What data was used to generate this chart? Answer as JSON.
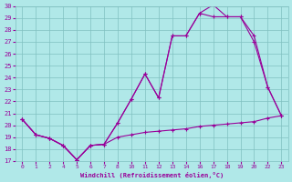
{
  "xlabel": "Windchill (Refroidissement éolien,°C)",
  "bg_color": "#b0e8e8",
  "grid_color": "#80c0c0",
  "line_color": "#990099",
  "hour_labels": [
    "0",
    "1",
    "2",
    "4",
    "5",
    "6",
    "7",
    "8",
    "10",
    "11",
    "12",
    "13",
    "14",
    "16",
    "17",
    "18",
    "19",
    "20",
    "22",
    "23"
  ],
  "ylim": [
    17,
    30
  ],
  "y_ticks": [
    17,
    18,
    19,
    20,
    21,
    22,
    23,
    24,
    25,
    26,
    27,
    28,
    29,
    30
  ],
  "series": [
    {
      "y": [
        20.5,
        19.2,
        18.9,
        18.3,
        17.1,
        18.3,
        18.4,
        20.2,
        22.2,
        24.3,
        22.3,
        27.5,
        27.5,
        29.4,
        30.1,
        29.1,
        29.1,
        27.5,
        23.2,
        20.8
      ]
    },
    {
      "y": [
        20.5,
        19.2,
        18.9,
        18.3,
        17.1,
        18.3,
        18.4,
        20.2,
        22.2,
        24.3,
        22.3,
        27.5,
        27.5,
        29.4,
        29.1,
        29.1,
        29.1,
        27.0,
        23.2,
        20.8
      ]
    },
    {
      "y": [
        20.5,
        19.2,
        18.9,
        18.3,
        17.1,
        18.3,
        18.4,
        19.0,
        19.2,
        19.4,
        19.5,
        19.6,
        19.7,
        19.9,
        20.0,
        20.1,
        20.2,
        20.3,
        20.6,
        20.8
      ]
    }
  ]
}
